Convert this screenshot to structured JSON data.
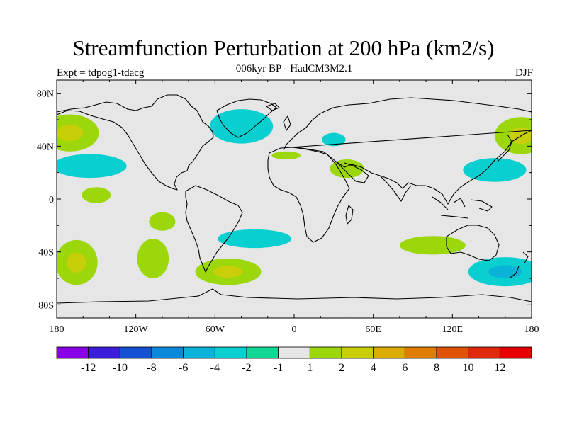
{
  "header": {
    "title": "Streamfunction Perturbation at 200 hPa (km2/s)",
    "subtitle": "006kyr BP - HadCM3M2.1",
    "left_label": "Expt = tdpog1-tdacg",
    "right_label": "DJF"
  },
  "chart_data": {
    "type": "heatmap",
    "projection": "cylindrical-equidistant",
    "title": "Streamfunction Perturbation at 200 hPa (km2/s)",
    "lon_range": [
      -180,
      180
    ],
    "lat_range": [
      -90,
      90
    ],
    "x_ticks": [
      {
        "value": -180,
        "label": "180"
      },
      {
        "value": -120,
        "label": "120W"
      },
      {
        "value": -60,
        "label": "60W"
      },
      {
        "value": 0,
        "label": "0"
      },
      {
        "value": 60,
        "label": "60E"
      },
      {
        "value": 120,
        "label": "120E"
      },
      {
        "value": 180,
        "label": "180"
      }
    ],
    "y_ticks": [
      {
        "value": 80,
        "label": "80N"
      },
      {
        "value": 40,
        "label": "40N"
      },
      {
        "value": 0,
        "label": "0"
      },
      {
        "value": -40,
        "label": "40S"
      },
      {
        "value": -80,
        "label": "80S"
      }
    ],
    "colorbar": {
      "labels": [
        "-12",
        "-10",
        "-8",
        "-6",
        "-4",
        "-2",
        "-1",
        "1",
        "2",
        "4",
        "6",
        "8",
        "10",
        "12"
      ],
      "colors": [
        "#8a00e6",
        "#3b1ed9",
        "#1450d2",
        "#0a88da",
        "#0ab2d8",
        "#0acfd0",
        "#10d894",
        "#e6e6e6",
        "#9bd70a",
        "#c8cf08",
        "#dcac06",
        "#e07d05",
        "#e15304",
        "#e0290a",
        "#e60000"
      ]
    },
    "anomalies": [
      {
        "lon": -170,
        "lat": 50,
        "rx": 22,
        "ry": 14,
        "value": 4
      },
      {
        "lon": 172,
        "lat": 48,
        "rx": 20,
        "ry": 14,
        "value": 4
      },
      {
        "lon": -155,
        "lat": 25,
        "rx": 28,
        "ry": 9,
        "value": -2
      },
      {
        "lon": 152,
        "lat": 22,
        "rx": 24,
        "ry": 9,
        "value": -2
      },
      {
        "lon": -40,
        "lat": 55,
        "rx": 24,
        "ry": 13,
        "value": -2
      },
      {
        "lon": 30,
        "lat": 45,
        "rx": 9,
        "ry": 5,
        "value": -2
      },
      {
        "lon": -6,
        "lat": 33,
        "rx": 11,
        "ry": 3,
        "value": 2
      },
      {
        "lon": 40,
        "lat": 23,
        "rx": 13,
        "ry": 7,
        "value": 2
      },
      {
        "lon": -150,
        "lat": 3,
        "rx": 11,
        "ry": 6,
        "value": 2
      },
      {
        "lon": -100,
        "lat": -17,
        "rx": 10,
        "ry": 7,
        "value": 2
      },
      {
        "lon": -165,
        "lat": -48,
        "rx": 16,
        "ry": 17,
        "value": 4
      },
      {
        "lon": -107,
        "lat": -45,
        "rx": 12,
        "ry": 15,
        "value": 2
      },
      {
        "lon": -50,
        "lat": -55,
        "rx": 25,
        "ry": 10,
        "value": 4
      },
      {
        "lon": -30,
        "lat": -30,
        "rx": 28,
        "ry": 7,
        "value": -2
      },
      {
        "lon": 105,
        "lat": -35,
        "rx": 25,
        "ry": 7,
        "value": 2
      },
      {
        "lon": 160,
        "lat": -55,
        "rx": 28,
        "ry": 11,
        "value": -4
      }
    ]
  }
}
